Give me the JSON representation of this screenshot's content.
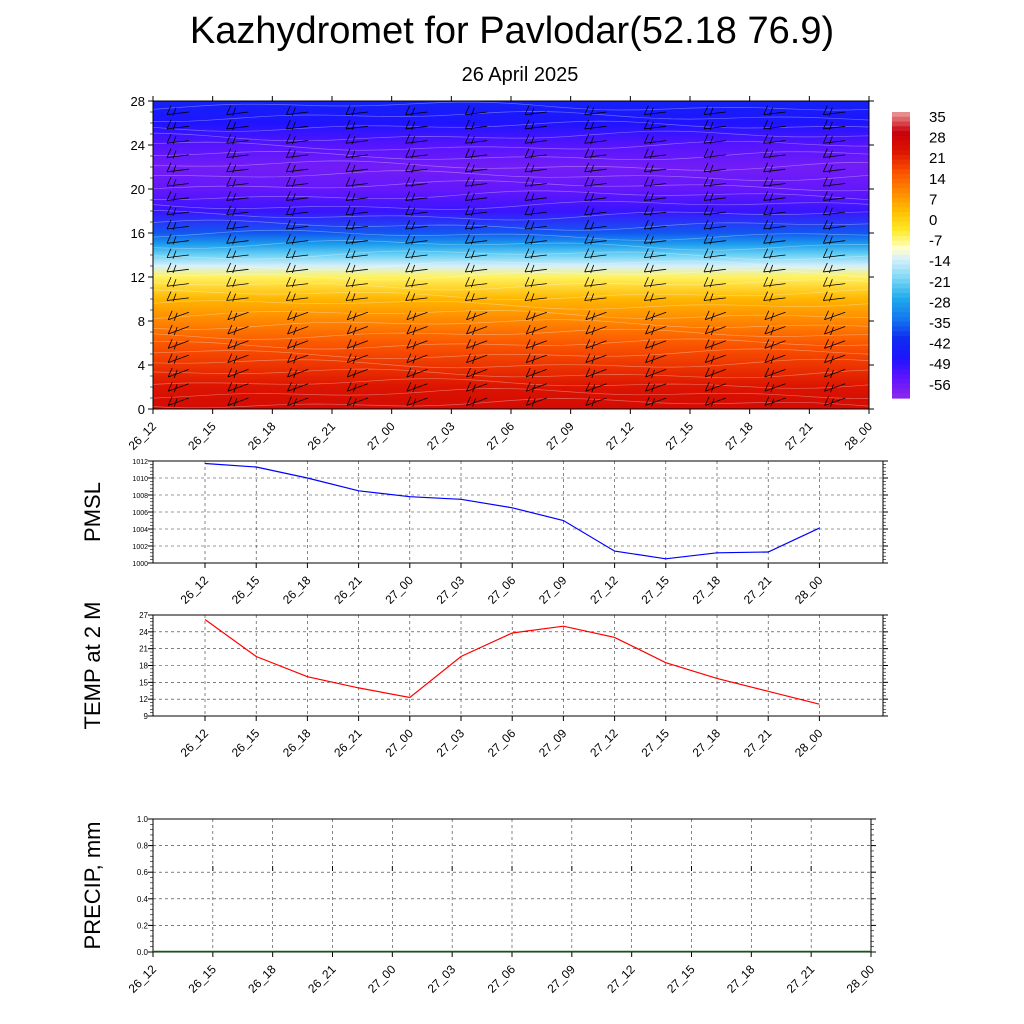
{
  "title": "Kazhydromet for Pavlodar(52.18 76.9)",
  "subtitle": "26 April 2025",
  "time_labels": [
    "26_12",
    "26_15",
    "26_18",
    "26_21",
    "27_00",
    "27_03",
    "27_06",
    "27_09",
    "27_12",
    "27_15",
    "27_18",
    "27_21",
    "28_00"
  ],
  "chart_data": [
    {
      "type": "heatmap",
      "title": "",
      "xlabel": "",
      "ylabel": "",
      "x": [
        "26_12",
        "26_15",
        "26_18",
        "26_21",
        "27_00",
        "27_03",
        "27_06",
        "27_09",
        "27_12",
        "27_15",
        "27_18",
        "27_21",
        "28_00"
      ],
      "y_ticks": [
        0,
        4,
        8,
        12,
        16,
        20,
        24,
        28
      ],
      "ylim": [
        0,
        28
      ],
      "colorbar_ticks": [
        35,
        28,
        21,
        14,
        7,
        0,
        -7,
        -14,
        -21,
        -28,
        -35,
        -42,
        -49,
        -56
      ],
      "colorbar_range": [
        -63,
        38
      ],
      "temperature_profile_by_height": [
        {
          "height": 0,
          "value": 27
        },
        {
          "height": 2,
          "value": 24
        },
        {
          "height": 4,
          "value": 20
        },
        {
          "height": 6,
          "value": 16
        },
        {
          "height": 8,
          "value": 10
        },
        {
          "height": 10,
          "value": 4
        },
        {
          "height": 12,
          "value": -6
        },
        {
          "height": 13,
          "value": -14
        },
        {
          "height": 14,
          "value": -22
        },
        {
          "height": 15,
          "value": -30
        },
        {
          "height": 16,
          "value": -38
        },
        {
          "height": 18,
          "value": -52
        },
        {
          "height": 20,
          "value": -57
        },
        {
          "height": 22,
          "value": -59
        },
        {
          "height": 24,
          "value": -55
        },
        {
          "height": 26,
          "value": -49
        },
        {
          "height": 28,
          "value": -45
        }
      ],
      "overlay": "wind barbs",
      "colors": {
        "hot": "#d40000",
        "warm": "#ff8c00",
        "mild": "#ffe600",
        "cold": "#29a8e8",
        "very_cold": "#1010ff",
        "coldest": "#8a2be2"
      }
    },
    {
      "type": "line",
      "ylabel": "PMSL",
      "x": [
        "26_12",
        "26_15",
        "26_18",
        "26_21",
        "27_00",
        "27_03",
        "27_06",
        "27_09",
        "27_12",
        "27_15",
        "27_18",
        "27_21",
        "28_00"
      ],
      "y_ticks": [
        1000,
        1002,
        1004,
        1006,
        1008,
        1010,
        1012
      ],
      "ylim": [
        1000,
        1012
      ],
      "series": [
        {
          "values": [
            1011.7,
            1011.3,
            1010.0,
            1008.5,
            1007.8,
            1007.5,
            1006.5,
            1005.0,
            1001.4,
            1000.5,
            1001.2,
            1001.3,
            1004.1
          ],
          "color": "#0000ff"
        }
      ],
      "grid": true
    },
    {
      "type": "line",
      "ylabel": "TEMP at 2 M",
      "x": [
        "26_12",
        "26_15",
        "26_18",
        "26_21",
        "27_00",
        "27_03",
        "27_06",
        "27_09",
        "27_12",
        "27_15",
        "27_18",
        "27_21",
        "28_00"
      ],
      "y_ticks": [
        9,
        12,
        15,
        18,
        21,
        24,
        27
      ],
      "ylim": [
        9,
        27
      ],
      "series": [
        {
          "values": [
            26.2,
            19.6,
            16.0,
            14.0,
            12.3,
            19.6,
            23.8,
            25.0,
            23.0,
            18.5,
            15.7,
            13.4,
            11.1
          ],
          "color": "#ff0000"
        }
      ],
      "grid": true
    },
    {
      "type": "line",
      "ylabel": "PRECIP, mm",
      "x": [
        "26_12",
        "26_15",
        "26_18",
        "26_21",
        "27_00",
        "27_03",
        "27_06",
        "27_09",
        "27_12",
        "27_15",
        "27_18",
        "27_21",
        "28_00"
      ],
      "y_ticks": [
        "0.0",
        "0.2",
        "0.4",
        "0.6",
        "0.8",
        "1.0"
      ],
      "ylim": [
        0,
        1
      ],
      "series": [
        {
          "values": [
            0,
            0,
            0,
            0,
            0,
            0,
            0,
            0,
            0,
            0,
            0,
            0,
            0
          ],
          "color": "#006400"
        }
      ],
      "grid": true
    }
  ]
}
